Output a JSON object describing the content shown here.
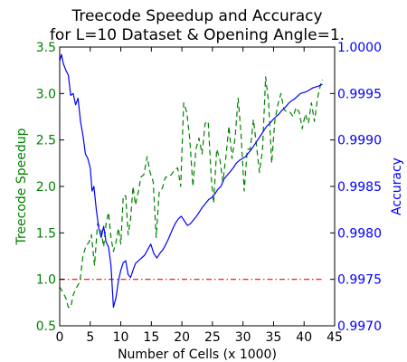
{
  "chart_data": {
    "type": "line",
    "title_line1": "Treecode Speedup and Accuracy",
    "title_line2": "for L=10 Dataset & Opening Angle=1.",
    "xlabel": "Number of Cells (x 1000)",
    "ylabel_left": "Treecode Speedup",
    "ylabel_right": "Accuracy",
    "xlim": [
      0,
      45
    ],
    "ylim_left": [
      0.5,
      3.5
    ],
    "ylim_right": [
      0.997,
      1.0
    ],
    "x_ticks": [
      "0",
      "5",
      "10",
      "15",
      "20",
      "25",
      "30",
      "35",
      "40",
      "45"
    ],
    "y_ticks_left": [
      "0.5",
      "1.0",
      "1.5",
      "2.0",
      "2.5",
      "3.0",
      "3.5"
    ],
    "y_ticks_right": [
      "0.9970",
      "0.9975",
      "0.9980",
      "0.9985",
      "0.9990",
      "0.9995",
      "1.0000"
    ],
    "series": [
      {
        "axis": "left",
        "color": "#008000",
        "style": "dashed",
        "points": [
          [
            0.0,
            0.92
          ],
          [
            0.5,
            0.86
          ],
          [
            1.0,
            0.8
          ],
          [
            1.4,
            0.7
          ],
          [
            1.8,
            0.7
          ],
          [
            2.2,
            0.83
          ],
          [
            2.8,
            0.92
          ],
          [
            3.3,
            0.97
          ],
          [
            3.8,
            1.25
          ],
          [
            4.3,
            1.36
          ],
          [
            4.8,
            1.4
          ],
          [
            5.2,
            1.48
          ],
          [
            5.7,
            1.15
          ],
          [
            6.2,
            1.6
          ],
          [
            6.7,
            1.55
          ],
          [
            7.2,
            1.35
          ],
          [
            7.6,
            1.6
          ],
          [
            8.0,
            1.72
          ],
          [
            8.4,
            1.45
          ],
          [
            8.8,
            1.3
          ],
          [
            9.2,
            1.4
          ],
          [
            9.6,
            1.55
          ],
          [
            10.0,
            1.38
          ],
          [
            10.4,
            1.9
          ],
          [
            10.8,
            1.9
          ],
          [
            11.2,
            1.48
          ],
          [
            11.6,
            1.65
          ],
          [
            12.0,
            2.0
          ],
          [
            12.4,
            1.8
          ],
          [
            12.9,
            1.95
          ],
          [
            13.3,
            2.1
          ],
          [
            13.8,
            2.13
          ],
          [
            14.3,
            2.32
          ],
          [
            14.8,
            2.15
          ],
          [
            15.3,
            2.05
          ],
          [
            15.8,
            1.45
          ],
          [
            16.3,
            1.95
          ],
          [
            16.8,
            1.98
          ],
          [
            17.3,
            2.1
          ],
          [
            17.8,
            2.1
          ],
          [
            18.3,
            2.13
          ],
          [
            18.8,
            2.18
          ],
          [
            19.3,
            2.2
          ],
          [
            19.8,
            2.0
          ],
          [
            20.3,
            2.9
          ],
          [
            20.8,
            2.8
          ],
          [
            21.3,
            2.5
          ],
          [
            21.8,
            2.0
          ],
          [
            22.3,
            2.4
          ],
          [
            22.8,
            2.52
          ],
          [
            23.3,
            2.35
          ],
          [
            23.8,
            2.68
          ],
          [
            24.3,
            2.7
          ],
          [
            24.8,
            2.1
          ],
          [
            25.2,
            1.82
          ],
          [
            25.7,
            2.4
          ],
          [
            26.2,
            2.3
          ],
          [
            26.7,
            2.05
          ],
          [
            27.2,
            2.32
          ],
          [
            27.7,
            2.65
          ],
          [
            28.2,
            2.3
          ],
          [
            28.7,
            2.52
          ],
          [
            29.2,
            2.95
          ],
          [
            29.7,
            2.55
          ],
          [
            30.2,
            1.95
          ],
          [
            30.7,
            2.4
          ],
          [
            31.2,
            2.4
          ],
          [
            31.7,
            2.72
          ],
          [
            32.2,
            2.45
          ],
          [
            32.7,
            2.15
          ],
          [
            33.2,
            2.4
          ],
          [
            33.7,
            3.18
          ],
          [
            34.2,
            2.9
          ],
          [
            34.7,
            2.25
          ],
          [
            35.2,
            2.7
          ],
          [
            35.7,
            2.88
          ],
          [
            36.2,
            3.0
          ],
          [
            36.7,
            2.83
          ],
          [
            37.2,
            2.8
          ],
          [
            37.7,
            2.8
          ],
          [
            38.2,
            2.75
          ],
          [
            38.7,
            2.85
          ],
          [
            39.2,
            2.8
          ],
          [
            39.7,
            2.62
          ],
          [
            40.2,
            2.78
          ],
          [
            40.7,
            2.68
          ],
          [
            41.2,
            2.9
          ],
          [
            41.7,
            2.7
          ],
          [
            42.2,
            2.95
          ],
          [
            42.7,
            3.1
          ],
          [
            43.0,
            3.15
          ]
        ]
      },
      {
        "axis": "left",
        "color": "#ff0000",
        "style": "dashdot",
        "points": [
          [
            0.0,
            1.0
          ],
          [
            43.0,
            1.0
          ]
        ]
      },
      {
        "axis": "right",
        "color": "#0000ff",
        "style": "solid",
        "points": [
          [
            0.0,
            0.99985
          ],
          [
            0.3,
            0.99992
          ],
          [
            0.6,
            0.99982
          ],
          [
            1.0,
            0.99975
          ],
          [
            1.4,
            0.9997
          ],
          [
            1.8,
            0.99948
          ],
          [
            2.2,
            0.9995
          ],
          [
            2.6,
            0.99938
          ],
          [
            3.0,
            0.99945
          ],
          [
            3.4,
            0.9992
          ],
          [
            3.8,
            0.99905
          ],
          [
            4.2,
            0.99885
          ],
          [
            4.6,
            0.9988
          ],
          [
            5.0,
            0.9987
          ],
          [
            5.3,
            0.99845
          ],
          [
            5.6,
            0.9985
          ],
          [
            6.0,
            0.99825
          ],
          [
            6.4,
            0.99805
          ],
          [
            6.8,
            0.99795
          ],
          [
            7.2,
            0.99807
          ],
          [
            7.6,
            0.9979
          ],
          [
            8.0,
            0.99785
          ],
          [
            8.4,
            0.99765
          ],
          [
            8.8,
            0.9972
          ],
          [
            9.2,
            0.9973
          ],
          [
            9.6,
            0.99748
          ],
          [
            10.0,
            0.9976
          ],
          [
            10.4,
            0.99768
          ],
          [
            10.8,
            0.9977
          ],
          [
            11.2,
            0.99755
          ],
          [
            11.6,
            0.99752
          ],
          [
            12.0,
            0.9976
          ],
          [
            12.4,
            0.99767
          ],
          [
            12.9,
            0.9977
          ],
          [
            13.4,
            0.99773
          ],
          [
            13.9,
            0.99776
          ],
          [
            14.4,
            0.99782
          ],
          [
            14.9,
            0.99788
          ],
          [
            15.4,
            0.99778
          ],
          [
            15.9,
            0.99773
          ],
          [
            16.4,
            0.99778
          ],
          [
            16.9,
            0.99782
          ],
          [
            17.4,
            0.99788
          ],
          [
            17.9,
            0.99795
          ],
          [
            18.4,
            0.99803
          ],
          [
            18.9,
            0.9981
          ],
          [
            19.4,
            0.99815
          ],
          [
            19.9,
            0.99818
          ],
          [
            20.4,
            0.99813
          ],
          [
            20.9,
            0.99808
          ],
          [
            21.4,
            0.9981
          ],
          [
            21.9,
            0.99814
          ],
          [
            22.4,
            0.99818
          ],
          [
            22.9,
            0.99823
          ],
          [
            23.4,
            0.99828
          ],
          [
            23.9,
            0.99832
          ],
          [
            24.4,
            0.99836
          ],
          [
            24.9,
            0.99838
          ],
          [
            25.4,
            0.99842
          ],
          [
            25.9,
            0.99847
          ],
          [
            26.4,
            0.9985
          ],
          [
            26.9,
            0.99858
          ],
          [
            27.4,
            0.99862
          ],
          [
            27.9,
            0.99866
          ],
          [
            28.4,
            0.9987
          ],
          [
            28.9,
            0.99875
          ],
          [
            29.4,
            0.99878
          ],
          [
            29.9,
            0.9988
          ],
          [
            30.4,
            0.99882
          ],
          [
            30.9,
            0.99886
          ],
          [
            31.4,
            0.9989
          ],
          [
            31.9,
            0.99895
          ],
          [
            32.4,
            0.999
          ],
          [
            32.9,
            0.99905
          ],
          [
            33.4,
            0.9991
          ],
          [
            33.9,
            0.99915
          ],
          [
            34.4,
            0.99918
          ],
          [
            34.9,
            0.99922
          ],
          [
            35.4,
            0.99925
          ],
          [
            35.9,
            0.99928
          ],
          [
            36.4,
            0.99932
          ],
          [
            36.9,
            0.99935
          ],
          [
            37.4,
            0.99939
          ],
          [
            37.9,
            0.99942
          ],
          [
            38.4,
            0.99944
          ],
          [
            38.9,
            0.99947
          ],
          [
            39.4,
            0.9995
          ],
          [
            39.9,
            0.99951
          ],
          [
            40.4,
            0.99952
          ],
          [
            40.9,
            0.99954
          ],
          [
            41.4,
            0.99956
          ],
          [
            41.9,
            0.99957
          ],
          [
            42.4,
            0.99958
          ],
          [
            43.0,
            0.9996
          ]
        ]
      }
    ]
  }
}
